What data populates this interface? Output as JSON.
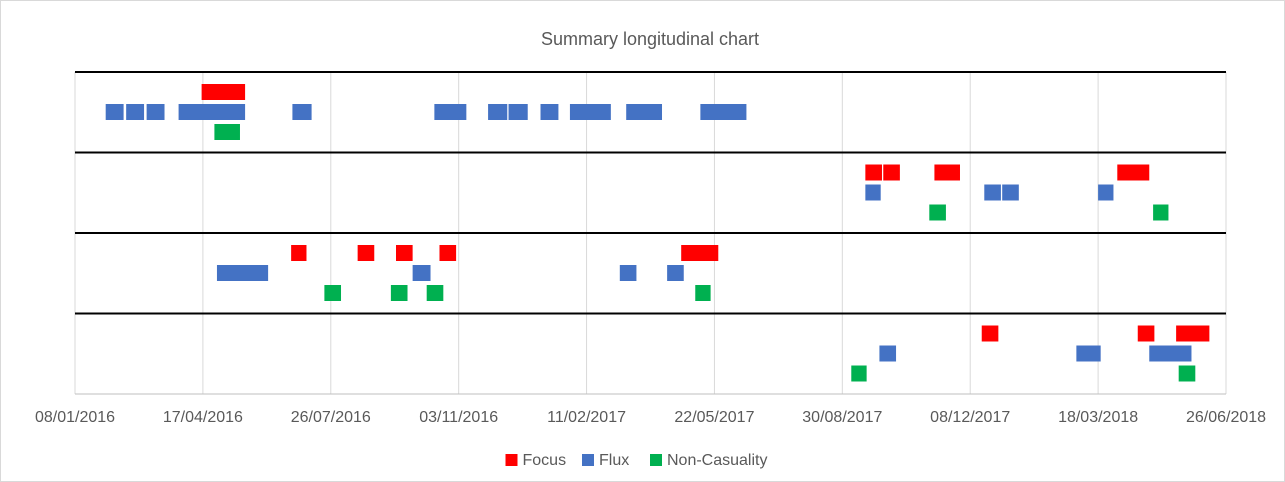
{
  "chart_data": {
    "type": "timeline",
    "title": "Summary longitudinal chart",
    "xlim": [
      "08/01/2016",
      "26/06/2018"
    ],
    "xticks": [
      "08/01/2016",
      "17/04/2016",
      "26/07/2016",
      "03/11/2016",
      "11/02/2017",
      "22/05/2017",
      "30/08/2017",
      "08/12/2017",
      "18/03/2018",
      "26/06/2018"
    ],
    "grid": true,
    "legend": "bottom",
    "series": [
      {
        "name": "Focus",
        "color": "#ff0000",
        "rows": [
          [
            {
              "start": "16/04/2016",
              "end": "20/05/2016"
            }
          ],
          [
            {
              "start": "17/09/2017",
              "end": "30/09/2017"
            },
            {
              "start": "01/10/2017",
              "end": "14/10/2017"
            },
            {
              "start": "10/11/2017",
              "end": "30/11/2017"
            },
            {
              "start": "02/04/2018",
              "end": "27/04/2018"
            }
          ],
          [
            {
              "start": "25/06/2016",
              "end": "07/07/2016"
            },
            {
              "start": "16/08/2016",
              "end": "29/08/2016"
            },
            {
              "start": "15/09/2016",
              "end": "28/09/2016"
            },
            {
              "start": "19/10/2016",
              "end": "01/11/2016"
            },
            {
              "start": "26/04/2017",
              "end": "25/05/2017"
            }
          ],
          [
            {
              "start": "17/12/2017",
              "end": "30/12/2017"
            },
            {
              "start": "18/04/2018",
              "end": "01/05/2018"
            },
            {
              "start": "18/05/2018",
              "end": "13/06/2018"
            }
          ]
        ]
      },
      {
        "name": "Flux",
        "color": "#4472c4",
        "rows": [
          [
            {
              "start": "01/02/2016",
              "end": "15/02/2016"
            },
            {
              "start": "17/02/2016",
              "end": "02/03/2016"
            },
            {
              "start": "04/03/2016",
              "end": "18/03/2016"
            },
            {
              "start": "29/03/2016",
              "end": "20/05/2016"
            },
            {
              "start": "26/06/2016",
              "end": "11/07/2016"
            },
            {
              "start": "15/10/2016",
              "end": "09/11/2016"
            },
            {
              "start": "26/11/2016",
              "end": "11/12/2016"
            },
            {
              "start": "12/12/2016",
              "end": "27/12/2016"
            },
            {
              "start": "06/01/2017",
              "end": "20/01/2017"
            },
            {
              "start": "29/01/2017",
              "end": "02/03/2017"
            },
            {
              "start": "14/03/2017",
              "end": "11/04/2017"
            },
            {
              "start": "11/05/2017",
              "end": "16/06/2017"
            }
          ],
          [
            {
              "start": "17/09/2017",
              "end": "29/09/2017"
            },
            {
              "start": "19/12/2017",
              "end": "01/01/2018"
            },
            {
              "start": "02/01/2018",
              "end": "15/01/2018"
            },
            {
              "start": "18/03/2018",
              "end": "30/03/2018"
            }
          ],
          [
            {
              "start": "28/04/2016",
              "end": "07/06/2016"
            },
            {
              "start": "28/09/2016",
              "end": "12/10/2016"
            },
            {
              "start": "09/03/2017",
              "end": "22/03/2017"
            },
            {
              "start": "15/04/2017",
              "end": "28/04/2017"
            }
          ],
          [
            {
              "start": "28/09/2017",
              "end": "11/10/2017"
            },
            {
              "start": "01/03/2018",
              "end": "20/03/2018"
            },
            {
              "start": "27/04/2018",
              "end": "30/05/2018"
            }
          ]
        ]
      },
      {
        "name": "Non-Casuality",
        "color": "#00b050",
        "rows": [
          [
            {
              "start": "26/04/2016",
              "end": "16/05/2016"
            }
          ],
          [
            {
              "start": "06/11/2017",
              "end": "19/11/2017"
            },
            {
              "start": "30/04/2018",
              "end": "12/05/2018"
            }
          ],
          [
            {
              "start": "21/07/2016",
              "end": "03/08/2016"
            },
            {
              "start": "11/09/2016",
              "end": "24/09/2016"
            },
            {
              "start": "09/10/2016",
              "end": "22/10/2016"
            },
            {
              "start": "07/05/2017",
              "end": "19/05/2017"
            }
          ],
          [
            {
              "start": "06/09/2017",
              "end": "18/09/2017"
            },
            {
              "start": "20/05/2018",
              "end": "02/06/2018"
            }
          ]
        ]
      }
    ]
  }
}
